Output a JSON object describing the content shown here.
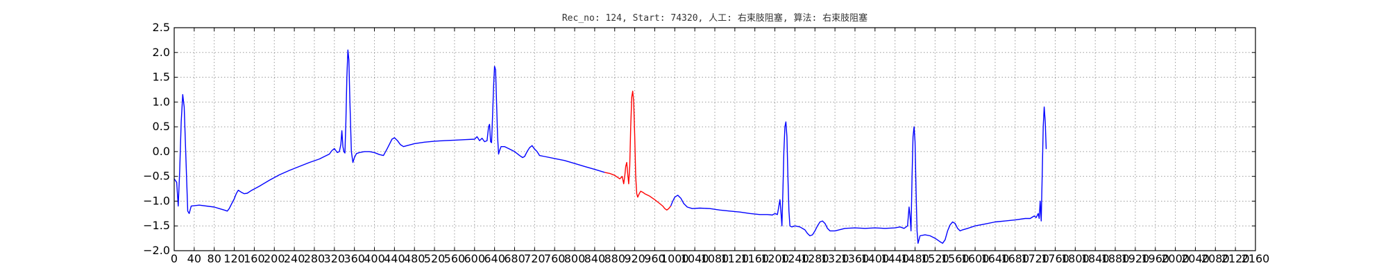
{
  "chart_data": {
    "type": "line",
    "title": "Rec_no: 124, Start: 74320, 人工: 右束肢阻塞, 算法: 右束肢阻塞",
    "xlabel": "",
    "ylabel": "",
    "xlim": [
      0,
      2160
    ],
    "ylim": [
      -2.0,
      2.5
    ],
    "yticks": [
      -2.0,
      -1.5,
      -1.0,
      -0.5,
      0.0,
      0.5,
      1.0,
      1.5,
      2.0,
      2.5
    ],
    "ytick_labels": [
      "−2.0",
      "−1.5",
      "−1.0",
      "−0.5",
      "0.0",
      "0.5",
      "1.0",
      "1.5",
      "2.0",
      "2.5"
    ],
    "xticks": [
      0,
      40,
      80,
      120,
      160,
      200,
      240,
      280,
      320,
      360,
      400,
      440,
      480,
      520,
      560,
      600,
      640,
      680,
      720,
      760,
      800,
      840,
      880,
      920,
      960,
      1000,
      1040,
      1080,
      1120,
      1160,
      1200,
      1240,
      1280,
      1320,
      1360,
      1400,
      1440,
      1480,
      1520,
      1560,
      1600,
      1640,
      1680,
      1720,
      1760,
      1800,
      1840,
      1880,
      1920,
      1960,
      2000,
      2040,
      2080,
      2120,
      2160
    ],
    "xtick_labels": [
      "0",
      "40",
      "80",
      "120",
      "160",
      "200",
      "240",
      "280",
      "320",
      "360",
      "400",
      "440",
      "480",
      "520",
      "560",
      "600",
      "640",
      "680",
      "720",
      "760",
      "800",
      "840",
      "880",
      "920",
      "960",
      "1000",
      "1040",
      "1080",
      "1120",
      "1160",
      "1200",
      "1240",
      "1280",
      "1320",
      "1360",
      "1400",
      "1440",
      "1480",
      "1520",
      "1560",
      "1600",
      "1640",
      "1680",
      "1720",
      "1760",
      "1800",
      "1840",
      "1880",
      "1920",
      "1960",
      "2000",
      "2040",
      "2080",
      "2120",
      "2160"
    ],
    "grid": true,
    "series": [
      {
        "color": "#0000ff",
        "points": [
          [
            0,
            -0.55
          ],
          [
            5,
            -0.62
          ],
          [
            8,
            -1.1
          ],
          [
            11,
            -0.4
          ],
          [
            14,
            0.6
          ],
          [
            17,
            1.15
          ],
          [
            20,
            0.9
          ],
          [
            24,
            -0.3
          ],
          [
            27,
            -1.2
          ],
          [
            30,
            -1.25
          ],
          [
            34,
            -1.1
          ],
          [
            50,
            -1.08
          ],
          [
            80,
            -1.12
          ],
          [
            90,
            -1.15
          ],
          [
            100,
            -1.18
          ],
          [
            106,
            -1.2
          ],
          [
            110,
            -1.15
          ],
          [
            115,
            -1.05
          ],
          [
            120,
            -0.95
          ],
          [
            124,
            -0.85
          ],
          [
            128,
            -0.78
          ],
          [
            134,
            -0.82
          ],
          [
            140,
            -0.85
          ],
          [
            146,
            -0.84
          ],
          [
            155,
            -0.78
          ],
          [
            170,
            -0.7
          ],
          [
            190,
            -0.58
          ],
          [
            210,
            -0.47
          ],
          [
            230,
            -0.38
          ],
          [
            250,
            -0.3
          ],
          [
            270,
            -0.22
          ],
          [
            290,
            -0.15
          ],
          [
            300,
            -0.1
          ],
          [
            310,
            -0.05
          ],
          [
            315,
            0.02
          ],
          [
            320,
            0.06
          ],
          [
            323,
            0.02
          ],
          [
            326,
            -0.02
          ],
          [
            330,
            0.0
          ],
          [
            333,
            0.15
          ],
          [
            335,
            0.42
          ],
          [
            337,
            0.1
          ],
          [
            339,
            0.0
          ],
          [
            341,
            -0.03
          ],
          [
            343,
            0.6
          ],
          [
            345,
            1.5
          ],
          [
            347,
            2.05
          ],
          [
            349,
            1.85
          ],
          [
            351,
            1.0
          ],
          [
            354,
            0.0
          ],
          [
            357,
            -0.22
          ],
          [
            360,
            -0.12
          ],
          [
            364,
            -0.04
          ],
          [
            370,
            -0.02
          ],
          [
            380,
            0.0
          ],
          [
            390,
            0.0
          ],
          [
            400,
            -0.02
          ],
          [
            410,
            -0.06
          ],
          [
            418,
            -0.08
          ],
          [
            425,
            0.05
          ],
          [
            430,
            0.15
          ],
          [
            435,
            0.25
          ],
          [
            440,
            0.28
          ],
          [
            446,
            0.22
          ],
          [
            452,
            0.14
          ],
          [
            458,
            0.1
          ],
          [
            465,
            0.12
          ],
          [
            480,
            0.16
          ],
          [
            500,
            0.19
          ],
          [
            520,
            0.21
          ],
          [
            540,
            0.22
          ],
          [
            560,
            0.23
          ],
          [
            580,
            0.24
          ],
          [
            600,
            0.25
          ],
          [
            605,
            0.3
          ],
          [
            610,
            0.22
          ],
          [
            615,
            0.27
          ],
          [
            620,
            0.2
          ],
          [
            625,
            0.22
          ],
          [
            628,
            0.5
          ],
          [
            630,
            0.55
          ],
          [
            632,
            0.2
          ],
          [
            634,
            0.18
          ],
          [
            636,
            0.7
          ],
          [
            638,
            1.3
          ],
          [
            640,
            1.72
          ],
          [
            642,
            1.65
          ],
          [
            644,
            1.0
          ],
          [
            646,
            0.3
          ],
          [
            648,
            -0.05
          ],
          [
            650,
            0.02
          ],
          [
            653,
            0.1
          ],
          [
            660,
            0.1
          ],
          [
            670,
            0.05
          ],
          [
            680,
            0.0
          ],
          [
            690,
            -0.08
          ],
          [
            696,
            -0.12
          ],
          [
            700,
            -0.1
          ],
          [
            705,
            0.0
          ],
          [
            710,
            0.08
          ],
          [
            715,
            0.12
          ],
          [
            720,
            0.05
          ],
          [
            725,
            0.0
          ],
          [
            730,
            -0.08
          ],
          [
            740,
            -0.1
          ],
          [
            760,
            -0.14
          ],
          [
            780,
            -0.18
          ],
          [
            800,
            -0.24
          ],
          [
            820,
            -0.3
          ],
          [
            840,
            -0.36
          ],
          [
            860,
            -0.42
          ]
        ]
      },
      {
        "color": "#ff0000",
        "points": [
          [
            860,
            -0.42
          ],
          [
            870,
            -0.44
          ],
          [
            880,
            -0.48
          ],
          [
            890,
            -0.55
          ],
          [
            895,
            -0.5
          ],
          [
            898,
            -0.65
          ],
          [
            900,
            -0.5
          ],
          [
            902,
            -0.3
          ],
          [
            904,
            -0.22
          ],
          [
            906,
            -0.45
          ],
          [
            908,
            -0.65
          ],
          [
            910,
            -0.3
          ],
          [
            912,
            0.5
          ],
          [
            914,
            1.1
          ],
          [
            916,
            1.22
          ],
          [
            918,
            1.0
          ],
          [
            920,
            0.3
          ],
          [
            922,
            -0.5
          ],
          [
            924,
            -0.85
          ],
          [
            926,
            -0.92
          ],
          [
            929,
            -0.85
          ],
          [
            932,
            -0.8
          ],
          [
            936,
            -0.82
          ],
          [
            940,
            -0.85
          ],
          [
            950,
            -0.9
          ],
          [
            960,
            -0.97
          ],
          [
            970,
            -1.05
          ],
          [
            976,
            -1.1
          ],
          [
            980,
            -1.15
          ],
          [
            984,
            -1.18
          ],
          [
            988,
            -1.15
          ],
          [
            992,
            -1.1
          ]
        ]
      },
      {
        "color": "#0000ff",
        "points": [
          [
            992,
            -1.1
          ],
          [
            996,
            -1.0
          ],
          [
            1000,
            -0.92
          ],
          [
            1006,
            -0.88
          ],
          [
            1012,
            -0.94
          ],
          [
            1018,
            -1.05
          ],
          [
            1025,
            -1.12
          ],
          [
            1035,
            -1.15
          ],
          [
            1050,
            -1.14
          ],
          [
            1070,
            -1.15
          ],
          [
            1090,
            -1.18
          ],
          [
            1110,
            -1.2
          ],
          [
            1130,
            -1.22
          ],
          [
            1150,
            -1.25
          ],
          [
            1170,
            -1.27
          ],
          [
            1185,
            -1.27
          ],
          [
            1195,
            -1.28
          ],
          [
            1200,
            -1.25
          ],
          [
            1205,
            -1.27
          ],
          [
            1208,
            -1.1
          ],
          [
            1210,
            -0.97
          ],
          [
            1212,
            -1.2
          ],
          [
            1214,
            -1.5
          ],
          [
            1216,
            -0.8
          ],
          [
            1218,
            0.0
          ],
          [
            1220,
            0.5
          ],
          [
            1222,
            0.6
          ],
          [
            1224,
            0.3
          ],
          [
            1226,
            -0.5
          ],
          [
            1228,
            -1.2
          ],
          [
            1230,
            -1.5
          ],
          [
            1234,
            -1.52
          ],
          [
            1240,
            -1.5
          ],
          [
            1250,
            -1.52
          ],
          [
            1260,
            -1.58
          ],
          [
            1265,
            -1.65
          ],
          [
            1270,
            -1.7
          ],
          [
            1275,
            -1.68
          ],
          [
            1280,
            -1.6
          ],
          [
            1285,
            -1.5
          ],
          [
            1290,
            -1.42
          ],
          [
            1295,
            -1.4
          ],
          [
            1300,
            -1.45
          ],
          [
            1305,
            -1.55
          ],
          [
            1310,
            -1.6
          ],
          [
            1320,
            -1.6
          ],
          [
            1340,
            -1.55
          ],
          [
            1360,
            -1.54
          ],
          [
            1380,
            -1.55
          ],
          [
            1400,
            -1.54
          ],
          [
            1420,
            -1.55
          ],
          [
            1440,
            -1.54
          ],
          [
            1450,
            -1.52
          ],
          [
            1458,
            -1.55
          ],
          [
            1465,
            -1.5
          ],
          [
            1468,
            -1.12
          ],
          [
            1470,
            -1.3
          ],
          [
            1472,
            -1.6
          ],
          [
            1474,
            -0.5
          ],
          [
            1476,
            0.3
          ],
          [
            1478,
            0.5
          ],
          [
            1480,
            0.2
          ],
          [
            1482,
            -0.8
          ],
          [
            1484,
            -1.6
          ],
          [
            1486,
            -1.85
          ],
          [
            1490,
            -1.7
          ],
          [
            1500,
            -1.68
          ],
          [
            1510,
            -1.7
          ],
          [
            1520,
            -1.75
          ],
          [
            1530,
            -1.82
          ],
          [
            1535,
            -1.85
          ],
          [
            1540,
            -1.78
          ],
          [
            1545,
            -1.6
          ],
          [
            1550,
            -1.48
          ],
          [
            1555,
            -1.42
          ],
          [
            1560,
            -1.45
          ],
          [
            1565,
            -1.55
          ],
          [
            1570,
            -1.6
          ],
          [
            1575,
            -1.58
          ],
          [
            1585,
            -1.55
          ],
          [
            1600,
            -1.5
          ],
          [
            1620,
            -1.46
          ],
          [
            1640,
            -1.42
          ],
          [
            1660,
            -1.4
          ],
          [
            1680,
            -1.38
          ],
          [
            1700,
            -1.35
          ],
          [
            1710,
            -1.35
          ],
          [
            1718,
            -1.3
          ],
          [
            1722,
            -1.33
          ],
          [
            1726,
            -1.25
          ],
          [
            1728,
            -1.35
          ],
          [
            1730,
            -1.0
          ],
          [
            1732,
            -1.4
          ],
          [
            1734,
            -0.5
          ],
          [
            1736,
            0.5
          ],
          [
            1738,
            0.9
          ],
          [
            1740,
            0.6
          ],
          [
            1742,
            0.05
          ]
        ]
      }
    ]
  }
}
